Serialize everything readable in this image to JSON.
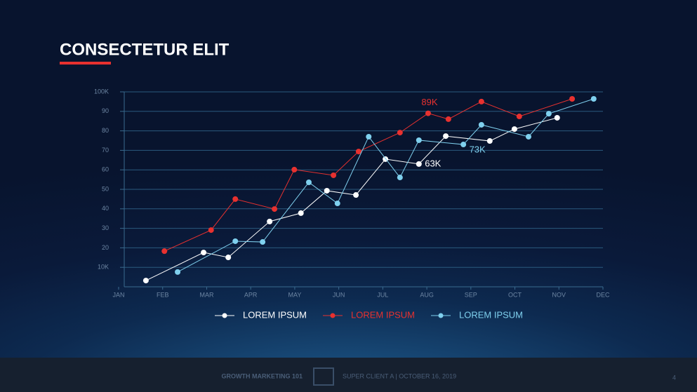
{
  "slide": {
    "title": "CONSECTETUR ELIT",
    "footer_left": "GROWTH MARKETING 101",
    "footer_right": "SUPER CLIENT A | OCTOBER 16, 2019",
    "page": "4"
  },
  "chart_data": {
    "type": "line",
    "xlim": [
      0,
      11
    ],
    "xticks": [
      {
        "value": 0,
        "label": "JAN"
      },
      {
        "value": 1,
        "label": "FEB"
      },
      {
        "value": 2,
        "label": "MAR"
      },
      {
        "value": 3,
        "label": "APR"
      },
      {
        "value": 4,
        "label": "MAY"
      },
      {
        "value": 5,
        "label": "JUN"
      },
      {
        "value": 6,
        "label": "JUL"
      },
      {
        "value": 7,
        "label": "AUG"
      },
      {
        "value": 8,
        "label": "SEP"
      },
      {
        "value": 9,
        "label": "OCT"
      },
      {
        "value": 10,
        "label": "NOV"
      },
      {
        "value": 11,
        "label": "DEC"
      }
    ],
    "ylim": [
      0,
      100
    ],
    "yticks": [
      {
        "value": 10,
        "label": "10K"
      },
      20,
      30,
      40,
      50,
      60,
      70,
      80,
      90,
      {
        "value": 100,
        "label": "100K"
      }
    ],
    "grid": true,
    "series": [
      {
        "name": "LOREM IPSUM",
        "color": "#ffffff",
        "x": [
          0.62,
          1.93,
          2.49,
          3.43,
          4.14,
          4.73,
          5.39,
          6.06,
          6.82,
          7.43,
          8.43,
          8.99,
          9.96
        ],
        "values": [
          3.2,
          17.6,
          15.1,
          33.5,
          37.8,
          49.3,
          47.1,
          65.5,
          63,
          77.3,
          74.8,
          80.9,
          86.7
        ],
        "value_labels": [
          null,
          null,
          null,
          null,
          null,
          null,
          null,
          null,
          "63K",
          null,
          null,
          null,
          null
        ]
      },
      {
        "name": "LOREM IPSUM",
        "color": "#e8312f",
        "x": [
          1.04,
          2.1,
          2.65,
          3.54,
          3.99,
          4.88,
          5.45,
          6.39,
          7.03,
          7.49,
          8.24,
          9.1,
          10.3
        ],
        "values": [
          18.3,
          29.1,
          45,
          39.9,
          60.1,
          57.2,
          69.4,
          79.1,
          89,
          86,
          95,
          87.4,
          96.4
        ],
        "value_labels": [
          null,
          null,
          null,
          null,
          null,
          null,
          null,
          null,
          "89K",
          null,
          null,
          null,
          null
        ]
      },
      {
        "name": "LOREM IPSUM",
        "color": "#7fd0ee",
        "x": [
          1.34,
          2.65,
          3.27,
          4.32,
          4.97,
          5.68,
          6.39,
          6.82,
          7.83,
          8.24,
          9.31,
          9.77,
          10.79
        ],
        "values": [
          7.6,
          23.4,
          23,
          53.6,
          42.8,
          77,
          56.1,
          75.2,
          73,
          83.1,
          77,
          88.8,
          96.4
        ],
        "value_labels": [
          null,
          null,
          null,
          null,
          null,
          null,
          null,
          null,
          "73K",
          null,
          null,
          null,
          null
        ]
      }
    ]
  }
}
